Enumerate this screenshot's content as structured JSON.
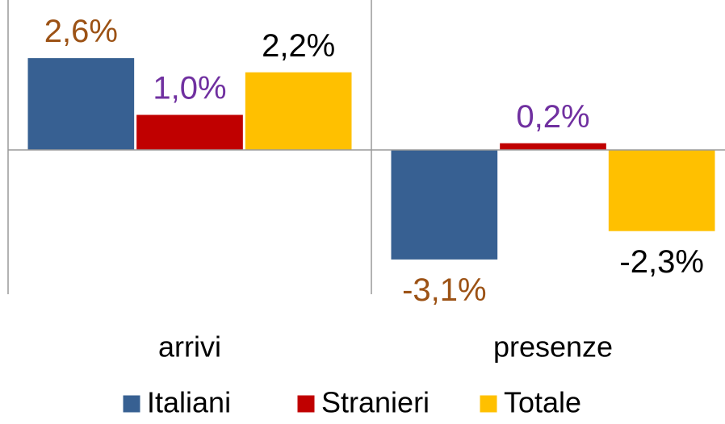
{
  "chart_data": {
    "type": "bar",
    "categories": [
      "arrivi",
      "presenze"
    ],
    "series": [
      {
        "name": "Italiani",
        "color": "#376092",
        "label_color": "#9c5215",
        "values": [
          2.6,
          -3.1
        ],
        "value_labels": [
          "2,6%",
          "-3,1%"
        ]
      },
      {
        "name": "Stranieri",
        "color": "#c00000",
        "label_color": "#7030a0",
        "values": [
          1.0,
          0.2
        ],
        "value_labels": [
          "1,0%",
          "0,2%"
        ]
      },
      {
        "name": "Totale",
        "color": "#ffc000",
        "label_color": "#000000",
        "values": [
          2.2,
          -2.3
        ],
        "value_labels": [
          "2,2%",
          "-2,3%"
        ]
      }
    ],
    "ylim": [
      -4,
      4
    ],
    "legend": "bottom"
  }
}
